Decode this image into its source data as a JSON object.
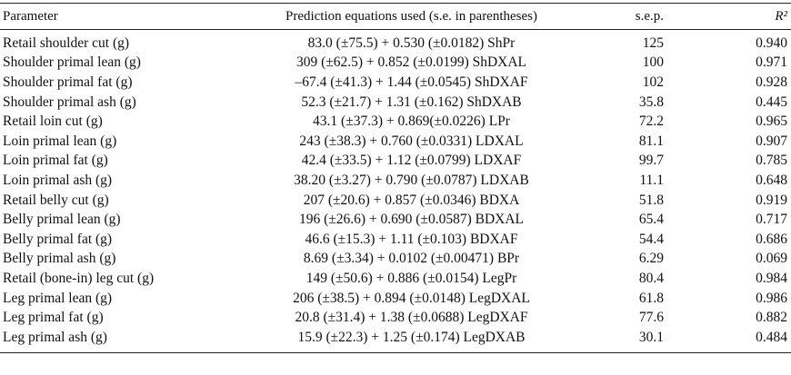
{
  "table": {
    "header": [
      "Parameter",
      "Prediction equations used (s.e. in parentheses)",
      "s.e.p.",
      "R²"
    ],
    "rows": [
      [
        "Retail shoulder cut (g)",
        "83.0 (±75.5) + 0.530 (±0.0182) ShPr",
        "125",
        "0.940"
      ],
      [
        "Shoulder primal lean (g)",
        "309 (±62.5) + 0.852 (±0.0199) ShDXAL",
        "100",
        "0.971"
      ],
      [
        "Shoulder primal fat (g)",
        "–67.4 (±41.3) + 1.44 (±0.0545) ShDXAF",
        "102",
        "0.928"
      ],
      [
        "Shoulder primal ash (g)",
        "52.3 (±21.7) + 1.31 (±0.162) ShDXAB",
        "35.8",
        "0.445"
      ],
      [
        "Retail loin cut (g)",
        "43.1 (±37.3) + 0.869(±0.0226) LPr",
        "72.2",
        "0.965"
      ],
      [
        "Loin primal lean (g)",
        "243 (±38.3) + 0.760 (±0.0331) LDXAL",
        "81.1",
        "0.907"
      ],
      [
        "Loin primal fat (g)",
        "42.4 (±33.5) + 1.12 (±0.0799) LDXAF",
        "99.7",
        "0.785"
      ],
      [
        "Loin primal ash (g)",
        "38.20 (±3.27) + 0.790 (±0.0787) LDXAB",
        "11.1",
        "0.648"
      ],
      [
        "Retail belly cut (g)",
        "207 (±20.6) + 0.857 (±0.0346) BDXA",
        "51.8",
        "0.919"
      ],
      [
        "Belly primal lean (g)",
        "196 (±26.6) + 0.690 (±0.0587) BDXAL",
        "65.4",
        "0.717"
      ],
      [
        "Belly primal fat (g)",
        "46.6 (±15.3) + 1.11 (±0.103) BDXAF",
        "54.4",
        "0.686"
      ],
      [
        "Belly primal ash (g)",
        "8.69 (±3.34) + 0.0102 (±0.00471) BPr",
        "6.29",
        "0.069"
      ],
      [
        "Retail (bone-in) leg cut (g)",
        "149 (±50.6) + 0.886 (±0.0154) LegPr",
        "80.4",
        "0.984"
      ],
      [
        "Leg primal lean (g)",
        "206 (±38.5) + 0.894 (±0.0148) LegDXAL",
        "61.8",
        "0.986"
      ],
      [
        "Leg primal fat (g)",
        "20.8 (±31.4) + 1.38 (±0.0688) LegDXAF",
        "77.6",
        "0.882"
      ],
      [
        "Leg primal ash (g)",
        "15.9 (±22.3) + 1.25 (±0.174) LegDXAB",
        "30.1",
        "0.484"
      ]
    ]
  }
}
